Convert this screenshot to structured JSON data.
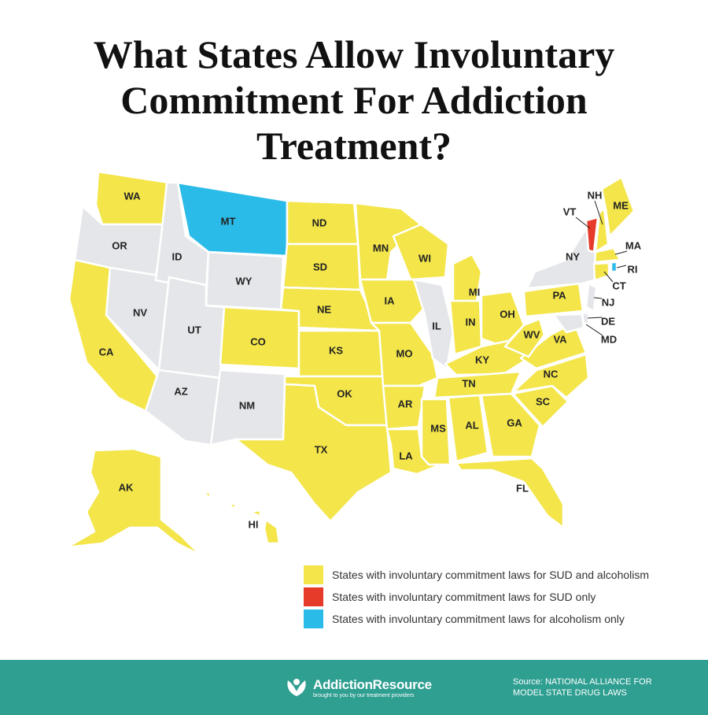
{
  "title": "What States Allow Involuntary Commitment For Addiction Treatment?",
  "states": [
    {
      "label": "WA",
      "color": "#f3e54a"
    },
    {
      "label": "OR",
      "color": "#e4e6e9"
    },
    {
      "label": "CA",
      "color": "#f3e54a"
    },
    {
      "label": "NV",
      "color": "#e4e6e9"
    },
    {
      "label": "ID",
      "color": "#e4e6e9"
    },
    {
      "label": "MT",
      "color": "#2bbbe8"
    },
    {
      "label": "WY",
      "color": "#e4e6e9"
    },
    {
      "label": "UT",
      "color": "#e4e6e9"
    },
    {
      "label": "AZ",
      "color": "#e4e6e9"
    },
    {
      "label": "CO",
      "color": "#f3e54a"
    },
    {
      "label": "NM",
      "color": "#e4e6e9"
    },
    {
      "label": "ND",
      "color": "#f3e54a"
    },
    {
      "label": "SD",
      "color": "#f3e54a"
    },
    {
      "label": "NE",
      "color": "#f3e54a"
    },
    {
      "label": "KS",
      "color": "#f3e54a"
    },
    {
      "label": "OK",
      "color": "#f3e54a"
    },
    {
      "label": "TX",
      "color": "#f3e54a"
    },
    {
      "label": "MN",
      "color": "#f3e54a"
    },
    {
      "label": "IA",
      "color": "#f3e54a"
    },
    {
      "label": "MO",
      "color": "#f3e54a"
    },
    {
      "label": "AR",
      "color": "#f3e54a"
    },
    {
      "label": "LA",
      "color": "#f3e54a"
    },
    {
      "label": "WI",
      "color": "#f3e54a"
    },
    {
      "label": "IL",
      "color": "#e4e6e9"
    },
    {
      "label": "MI",
      "color": "#f3e54a"
    },
    {
      "label": "IN",
      "color": "#f3e54a"
    },
    {
      "label": "OH",
      "color": "#f3e54a"
    },
    {
      "label": "KY",
      "color": "#f3e54a"
    },
    {
      "label": "TN",
      "color": "#f3e54a"
    },
    {
      "label": "MS",
      "color": "#f3e54a"
    },
    {
      "label": "AL",
      "color": "#f3e54a"
    },
    {
      "label": "GA",
      "color": "#f3e54a"
    },
    {
      "label": "FL",
      "color": "#f3e54a"
    },
    {
      "label": "SC",
      "color": "#f3e54a"
    },
    {
      "label": "NC",
      "color": "#f3e54a"
    },
    {
      "label": "VA",
      "color": "#f3e54a"
    },
    {
      "label": "WV",
      "color": "#f3e54a"
    },
    {
      "label": "PA",
      "color": "#f3e54a"
    },
    {
      "label": "NY",
      "color": "#e4e6e9"
    },
    {
      "label": "VT",
      "color": "#e63b2a"
    },
    {
      "label": "NH",
      "color": "#f3e54a"
    },
    {
      "label": "ME",
      "color": "#f3e54a"
    },
    {
      "label": "MA",
      "color": "#f3e54a"
    },
    {
      "label": "CT",
      "color": "#f3e54a"
    },
    {
      "label": "RI",
      "color": "#2bbbe8"
    },
    {
      "label": "NJ",
      "color": "#e4e6e9"
    },
    {
      "label": "DE",
      "color": "#e4e6e9"
    },
    {
      "label": "MD",
      "color": "#e4e6e9"
    },
    {
      "label": "AK",
      "color": "#f3e54a"
    },
    {
      "label": "HI",
      "color": "#f3e54a"
    }
  ],
  "legend": [
    {
      "label": "States with involuntary commitment laws for SUD and alcoholism",
      "color": "#f3e54a"
    },
    {
      "label": "States with involuntary commitment laws for SUD only",
      "color": "#e63b2a"
    },
    {
      "label": "States with involuntary commitment laws for alcoholism only",
      "color": "#2bbbe8"
    }
  ],
  "footer": {
    "brand": "AddictionResource",
    "tagline": "brought to you by our treatment providers",
    "source": "Source: NATIONAL ALLIANCE FOR MODEL STATE DRUG LAWS"
  }
}
